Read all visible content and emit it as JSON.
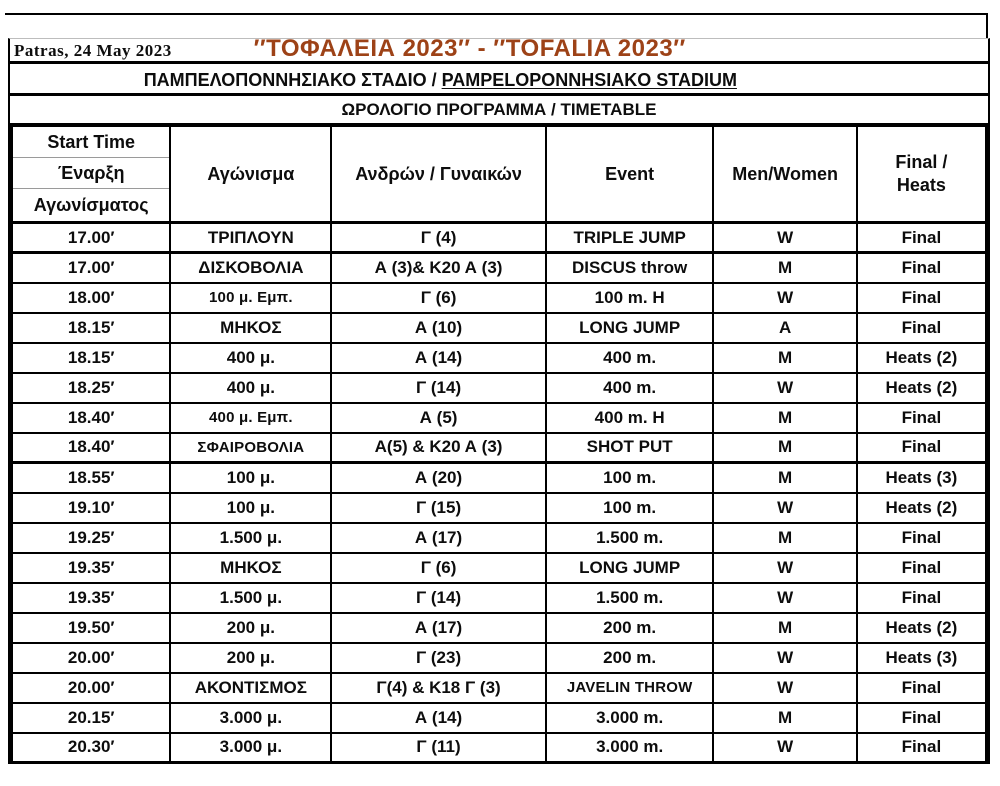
{
  "header": {
    "date": "Patras, 24 May 2023",
    "title": "′′ΤΟΦΑΛΕΙΑ 2023′′ - ′′TOFALIA 2023′′",
    "title_color": "#9d4217",
    "stadium_gr": "ΠΑΜΠΕΛΟΠΟΝΝΗΣΙΑΚΟ ΣΤΑΔΙΟ",
    "stadium_sep": " / ",
    "stadium_en": "PAMPELOPONNHSIAKO STADIUM",
    "subtitle": "ΩΡΟΛΟΓΙΟ ΠΡΟΓΡΑΜΜΑ / TIMETABLE"
  },
  "table": {
    "headers": {
      "start_time_lines": [
        "Start Time",
        "Έναρξη",
        "Αγωνίσματος"
      ],
      "event_gr": "Αγώνισμα",
      "entries": "Ανδρών / Γυναικών",
      "event_en": "Event",
      "men_women": "Men/Women",
      "final_heats_lines": [
        "Final /",
        "Heats"
      ]
    },
    "rows": [
      {
        "time": "17.00′",
        "event_gr": "ΤΡΙΠΛΟΥΝ",
        "entries": "Γ (4)",
        "event_en": "TRIPLE JUMP",
        "gender": "W",
        "round": "Final"
      },
      {
        "time": "17.00′",
        "event_gr": "ΔΙΣΚΟΒΟΛΙΑ",
        "entries": "Α (3)& Κ20 Α (3)",
        "event_en": "DISCUS throw",
        "gender": "M",
        "round": "Final"
      },
      {
        "time": "18.00′",
        "event_gr": "100 μ. Εμπ.",
        "entries": "Γ (6)",
        "event_en": "100 m. H",
        "gender": "W",
        "round": "Final"
      },
      {
        "time": "18.15′",
        "event_gr": "ΜΗΚΟΣ",
        "entries": "Α (10)",
        "event_en": "LONG JUMP",
        "gender": "A",
        "round": "Final"
      },
      {
        "time": "18.15′",
        "event_gr": "400 μ.",
        "entries": "Α (14)",
        "event_en": "400 m.",
        "gender": "M",
        "round": "Heats (2)"
      },
      {
        "time": "18.25′",
        "event_gr": "400 μ.",
        "entries": "Γ (14)",
        "event_en": "400 m.",
        "gender": "W",
        "round": "Heats (2)"
      },
      {
        "time": "18.40′",
        "event_gr": "400 μ.  Εμπ.",
        "entries": "Α (5)",
        "event_en": "400 m. H",
        "gender": "M",
        "round": "Final"
      },
      {
        "time": "18.40′",
        "event_gr": "ΣΦΑΙΡΟΒΟΛΙΑ",
        "entries": "Α(5) & Κ20 Α (3)",
        "event_en": "SHOT PUT",
        "gender": "M",
        "round": "Final"
      },
      {
        "time": "18.55′",
        "event_gr": "100 μ.",
        "entries": "Α (20)",
        "event_en": "100 m.",
        "gender": "M",
        "round": "Heats (3)"
      },
      {
        "time": "19.10′",
        "event_gr": "100 μ.",
        "entries": "Γ (15)",
        "event_en": "100 m.",
        "gender": "W",
        "round": "Heats (2)"
      },
      {
        "time": "19.25′",
        "event_gr": "1.500 μ.",
        "entries": "Α (17)",
        "event_en": "1.500 m.",
        "gender": "M",
        "round": "Final"
      },
      {
        "time": "19.35′",
        "event_gr": "ΜΗΚΟΣ",
        "entries": "Γ (6)",
        "event_en": "LONG JUMP",
        "gender": "W",
        "round": "Final"
      },
      {
        "time": "19.35′",
        "event_gr": "1.500 μ.",
        "entries": "Γ (14)",
        "event_en": "1.500 m.",
        "gender": "W",
        "round": "Final"
      },
      {
        "time": "19.50′",
        "event_gr": "200 μ.",
        "entries": "Α (17)",
        "event_en": "200 m.",
        "gender": "M",
        "round": "Heats (2)"
      },
      {
        "time": "20.00′",
        "event_gr": "200 μ.",
        "entries": "Γ (23)",
        "event_en": "200 m.",
        "gender": "W",
        "round": "Heats (3)"
      },
      {
        "time": "20.00′",
        "event_gr": "ΑΚΟΝΤΙΣΜΟΣ",
        "entries": "Γ(4) & Κ18 Γ (3)",
        "event_en": "JAVELIN THROW",
        "gender": "W",
        "round": "Final"
      },
      {
        "time": "20.15′",
        "event_gr": "3.000 μ.",
        "entries": "Α (14)",
        "event_en": "3.000 m.",
        "gender": "M",
        "round": "Final"
      },
      {
        "time": "20.30′",
        "event_gr": "3.000 μ.",
        "entries": "Γ (11)",
        "event_en": "3.000 m.",
        "gender": "W",
        "round": "Final"
      }
    ]
  }
}
